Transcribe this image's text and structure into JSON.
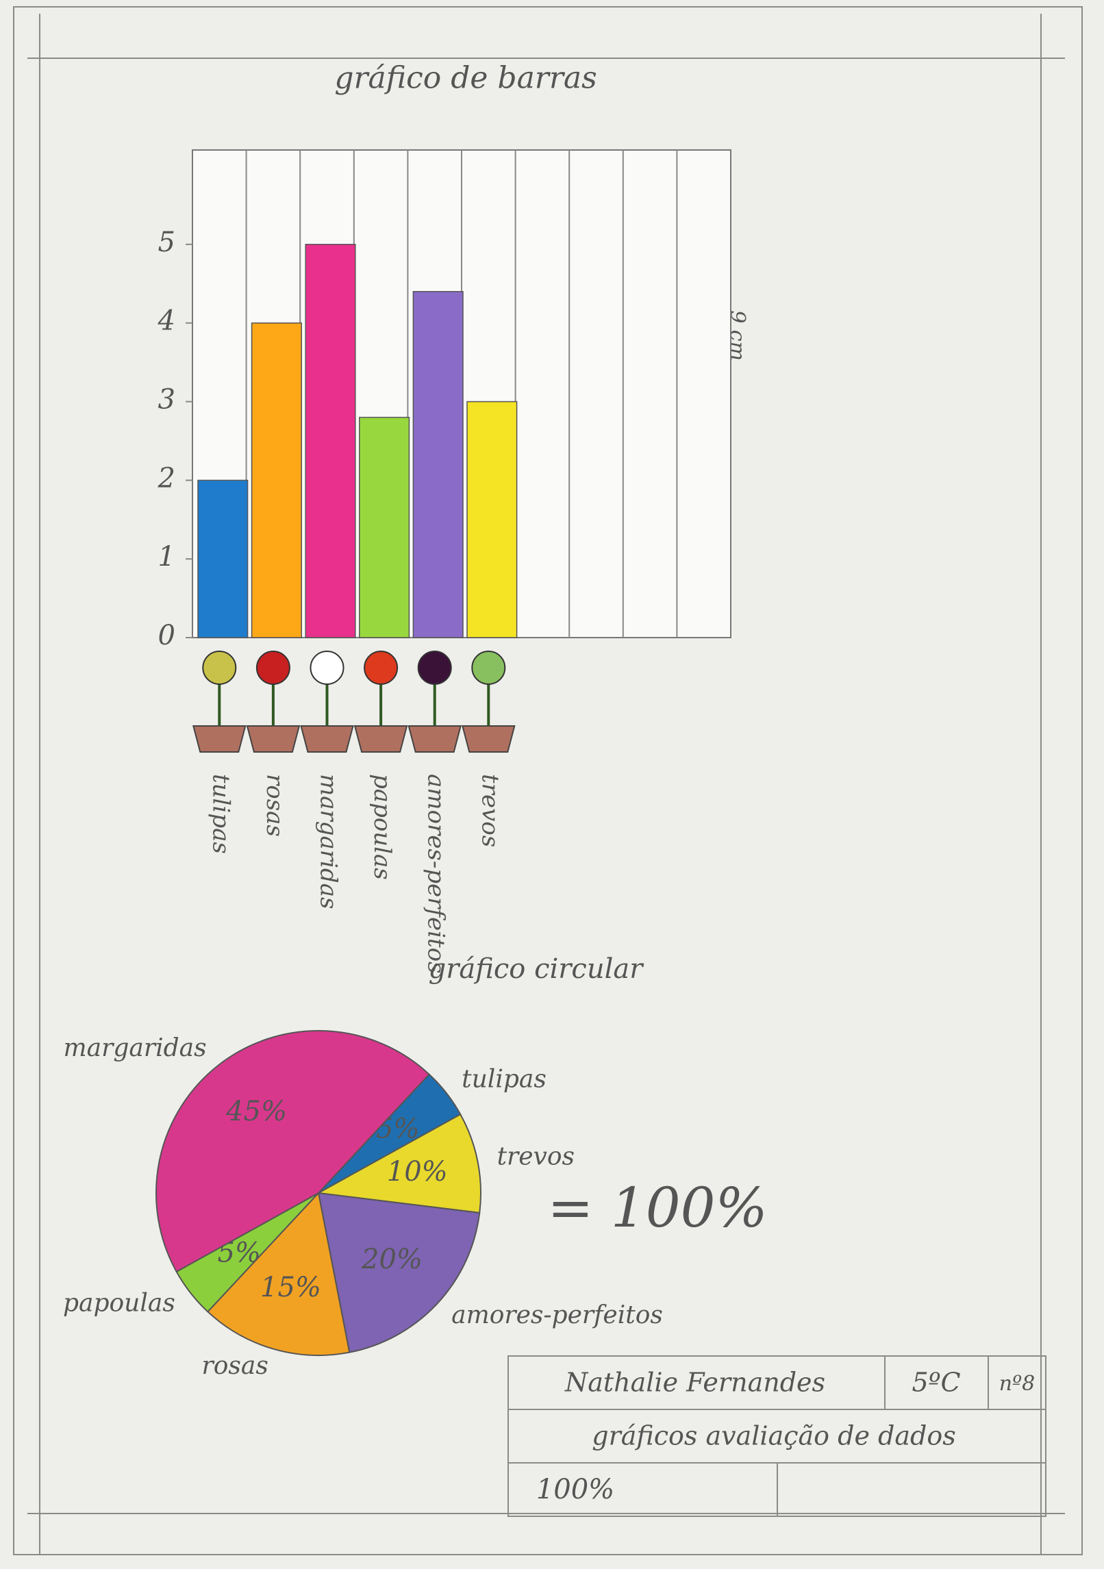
{
  "chart_data": [
    {
      "type": "bar",
      "title": "gráfico de barras",
      "annotation": "9 cm",
      "categories": [
        "tulipas",
        "rosas",
        "margaridas",
        "papoulas",
        "amores-perfeitos",
        "trevos"
      ],
      "values": [
        2,
        4,
        5,
        2.8,
        4.4,
        3
      ],
      "colors": [
        "#1f7ccc",
        "#ffa817",
        "#e8308c",
        "#98d83e",
        "#8a6cc8",
        "#f4e424"
      ],
      "ylim": [
        0,
        6.2
      ],
      "yticks": [
        0,
        1,
        2,
        3,
        4,
        5
      ]
    },
    {
      "type": "pie",
      "title": "gráfico circular",
      "annotation": "= 100%",
      "categories": [
        "tulipas",
        "trevos",
        "amores-perfeitos",
        "rosas",
        "papoulas",
        "margaridas"
      ],
      "values": [
        5,
        10,
        20,
        15,
        5,
        45
      ],
      "value_labels": [
        "5%",
        "10%",
        "20%",
        "15%",
        "5%",
        "45%"
      ],
      "colors": [
        "#1f6fb0",
        "#e8d92c",
        "#7e64b2",
        "#f2a222",
        "#8ccf3c",
        "#d8388c"
      ]
    }
  ],
  "footer": {
    "name": "Nathalie Fernandes",
    "class": "5ºC",
    "number": "nº8",
    "subject": "gráficos avaliação de dados",
    "grade": "100%"
  }
}
